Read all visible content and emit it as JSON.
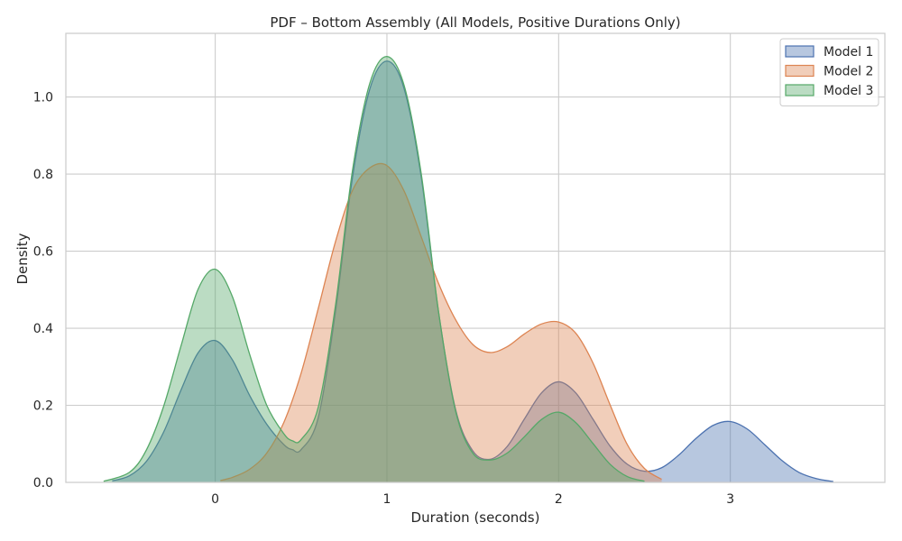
{
  "chart_data": {
    "type": "area",
    "title": "PDF – Bottom Assembly (All Models, Positive Durations Only)",
    "xlabel": "Duration (seconds)",
    "ylabel": "Density",
    "xlim": [
      -0.87,
      3.9
    ],
    "ylim": [
      0,
      1.165
    ],
    "xticks": [
      0,
      1,
      2,
      3
    ],
    "yticks": [
      0.0,
      0.2,
      0.4,
      0.6,
      0.8,
      1.0
    ],
    "x_tick_labels": [
      "0",
      "1",
      "2",
      "3"
    ],
    "y_tick_labels": [
      "0.0",
      "0.2",
      "0.4",
      "0.6",
      "0.8",
      "1.0"
    ],
    "grid": true,
    "legend_position": "top-right",
    "series": [
      {
        "name": "Model 1",
        "color": "#4c72b0",
        "x": [
          -0.6,
          -0.5,
          -0.4,
          -0.3,
          -0.2,
          -0.1,
          0.0,
          0.1,
          0.2,
          0.3,
          0.4,
          0.45,
          0.5,
          0.6,
          0.7,
          0.8,
          0.9,
          1.0,
          1.1,
          1.2,
          1.3,
          1.4,
          1.5,
          1.6,
          1.7,
          1.8,
          1.9,
          2.0,
          2.1,
          2.2,
          2.3,
          2.4,
          2.5,
          2.6,
          2.7,
          2.8,
          2.9,
          3.0,
          3.1,
          3.2,
          3.3,
          3.4,
          3.5,
          3.6
        ],
        "y": [
          0.004,
          0.017,
          0.055,
          0.131,
          0.239,
          0.336,
          0.368,
          0.318,
          0.226,
          0.151,
          0.098,
          0.085,
          0.085,
          0.168,
          0.442,
          0.793,
          1.02,
          1.093,
          1.022,
          0.792,
          0.444,
          0.189,
          0.082,
          0.06,
          0.093,
          0.164,
          0.232,
          0.261,
          0.232,
          0.164,
          0.094,
          0.047,
          0.029,
          0.038,
          0.071,
          0.114,
          0.148,
          0.158,
          0.138,
          0.098,
          0.057,
          0.026,
          0.01,
          0.002
        ]
      },
      {
        "name": "Model 2",
        "color": "#dd8452",
        "x": [
          0.03,
          0.1,
          0.2,
          0.3,
          0.4,
          0.5,
          0.6,
          0.7,
          0.8,
          0.9,
          1.0,
          1.1,
          1.2,
          1.3,
          1.4,
          1.5,
          1.6,
          1.7,
          1.8,
          1.9,
          2.0,
          2.1,
          2.2,
          2.3,
          2.4,
          2.5,
          2.6
        ],
        "y": [
          0.005,
          0.013,
          0.034,
          0.076,
          0.156,
          0.283,
          0.451,
          0.624,
          0.758,
          0.816,
          0.822,
          0.756,
          0.637,
          0.517,
          0.422,
          0.358,
          0.337,
          0.352,
          0.385,
          0.411,
          0.416,
          0.387,
          0.31,
          0.201,
          0.098,
          0.036,
          0.008
        ]
      },
      {
        "name": "Model 3",
        "color": "#55a868",
        "x": [
          -0.65,
          -0.5,
          -0.4,
          -0.3,
          -0.2,
          -0.1,
          0.0,
          0.1,
          0.2,
          0.3,
          0.4,
          0.45,
          0.5,
          0.6,
          0.7,
          0.8,
          0.9,
          1.0,
          1.1,
          1.2,
          1.3,
          1.4,
          1.5,
          1.6,
          1.7,
          1.8,
          1.9,
          2.0,
          2.1,
          2.2,
          2.3,
          2.4,
          2.5
        ],
        "y": [
          0.003,
          0.026,
          0.085,
          0.198,
          0.353,
          0.501,
          0.553,
          0.482,
          0.333,
          0.2,
          0.126,
          0.108,
          0.111,
          0.195,
          0.458,
          0.811,
          1.035,
          1.105,
          1.03,
          0.8,
          0.445,
          0.185,
          0.076,
          0.058,
          0.076,
          0.118,
          0.163,
          0.182,
          0.155,
          0.101,
          0.047,
          0.015,
          0.003
        ]
      }
    ]
  }
}
